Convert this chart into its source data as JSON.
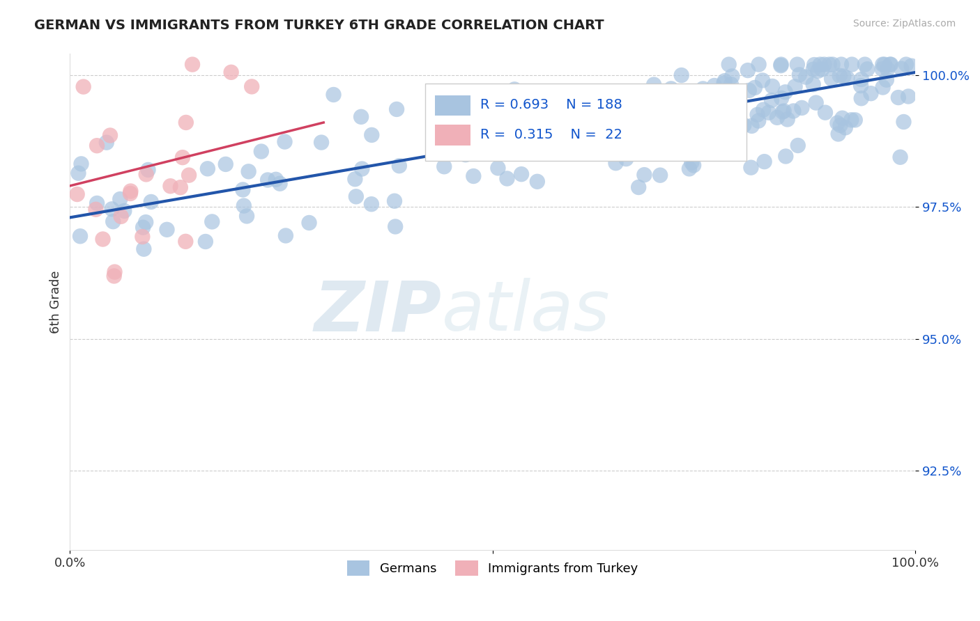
{
  "title": "GERMAN VS IMMIGRANTS FROM TURKEY 6TH GRADE CORRELATION CHART",
  "source_text": "Source: ZipAtlas.com",
  "ylabel": "6th Grade",
  "xlim": [
    0,
    1.0
  ],
  "ylim": [
    0.91,
    1.004
  ],
  "ytick_values": [
    0.925,
    0.95,
    0.975,
    1.0
  ],
  "ytick_labels": [
    "92.5%",
    "95.0%",
    "97.5%",
    "100.0%"
  ],
  "blue_R": 0.693,
  "blue_N": 188,
  "pink_R": 0.315,
  "pink_N": 22,
  "blue_color": "#a8c4e0",
  "blue_line_color": "#2255aa",
  "pink_color": "#f0b0b8",
  "pink_line_color": "#d04060",
  "legend_label_blue": "Germans",
  "legend_label_pink": "Immigrants from Turkey",
  "watermark_zip": "ZIP",
  "watermark_atlas": "atlas",
  "background_color": "#ffffff",
  "grid_color": "#cccccc",
  "title_color": "#222222",
  "annotation_color": "#1155cc",
  "blue_line_start_x": 0.0,
  "blue_line_start_y": 0.973,
  "blue_line_end_x": 1.0,
  "blue_line_end_y": 1.0005,
  "pink_line_start_x": 0.0,
  "pink_line_start_y": 0.979,
  "pink_line_end_x": 0.3,
  "pink_line_end_y": 0.991
}
